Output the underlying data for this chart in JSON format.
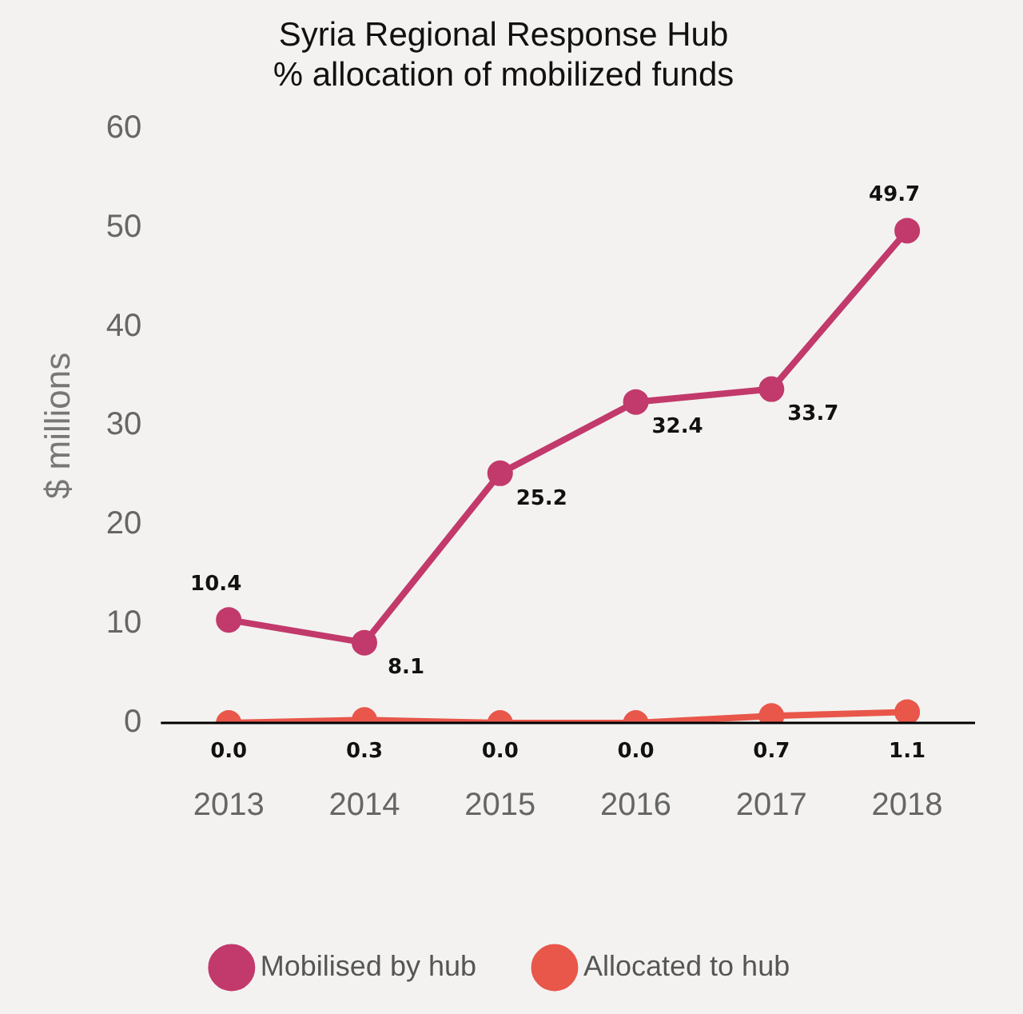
{
  "chart_data": {
    "type": "line",
    "title": "Syria Regional Response Hub\n% allocation of mobilized funds",
    "ylabel": "$ millions",
    "categories": [
      "2013",
      "2014",
      "2015",
      "2016",
      "2017",
      "2018"
    ],
    "series": [
      {
        "name": "Mobilised by hub",
        "color": "#c2396b",
        "values": [
          10.4,
          8.1,
          25.2,
          32.4,
          33.7,
          49.7
        ],
        "value_labels": [
          "10.4",
          "8.1",
          "25.2",
          "32.4",
          "33.7",
          "49.7"
        ]
      },
      {
        "name": "Allocated to hub",
        "color": "#e8574a",
        "values": [
          0,
          0.3,
          0,
          0,
          0.7,
          1.1
        ],
        "value_labels": [
          "0.0",
          "0.3",
          "0.0",
          "0.0",
          "0.7",
          "1.1"
        ]
      }
    ],
    "ylim": [
      0,
      60
    ],
    "yticks": [
      0,
      10,
      20,
      30,
      40,
      50,
      60
    ],
    "grid": false,
    "legend": "bottom",
    "marker": "circle",
    "line_style": "solid"
  }
}
